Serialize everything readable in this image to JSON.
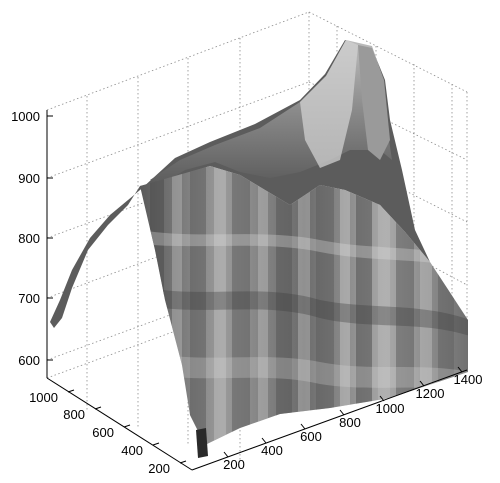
{
  "chart_data": {
    "type": "surface",
    "title": "",
    "xlabel": "",
    "ylabel": "",
    "zlabel": "",
    "x_ticks": [
      "200",
      "400",
      "600",
      "800",
      "1000",
      "1200",
      "1400"
    ],
    "y_ticks": [
      "200",
      "400",
      "600",
      "800",
      "1000"
    ],
    "z_ticks": [
      "600",
      "700",
      "800",
      "900",
      "1000"
    ],
    "xlim": [
      100,
      1400
    ],
    "ylim": [
      100,
      1100
    ],
    "zlim": [
      580,
      1040
    ],
    "grid": true,
    "colormap": "gray",
    "shading": "interp",
    "ridge_profile": {
      "y": [
        100,
        250,
        400,
        550,
        700,
        850,
        1000
      ],
      "z": [
        980,
        940,
        900,
        860,
        800,
        740,
        670
      ]
    },
    "front_edge_profile": {
      "x": [
        100,
        300,
        500,
        700,
        900,
        1100,
        1300
      ],
      "z": [
        600,
        620,
        640,
        660,
        690,
        720,
        760
      ]
    }
  }
}
